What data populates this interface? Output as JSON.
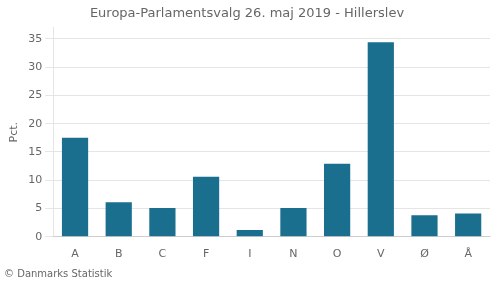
{
  "chart_data": {
    "type": "bar",
    "title": "Europa-Parlamentsvalg 26. maj 2019 - Hillerslev",
    "categories": [
      "A",
      "B",
      "C",
      "F",
      "I",
      "N",
      "O",
      "V",
      "Ø",
      "Å"
    ],
    "values": [
      17.5,
      6.1,
      5.1,
      10.6,
      1.2,
      5.1,
      12.9,
      34.4,
      3.8,
      4.1
    ],
    "color": "#1a6e8e",
    "ylabel": "Pct.",
    "ylim": [
      0,
      37
    ],
    "yticks": [
      0,
      5,
      10,
      15,
      20,
      25,
      30,
      35
    ],
    "grid": true,
    "footnote": "© Danmarks Statistik"
  }
}
